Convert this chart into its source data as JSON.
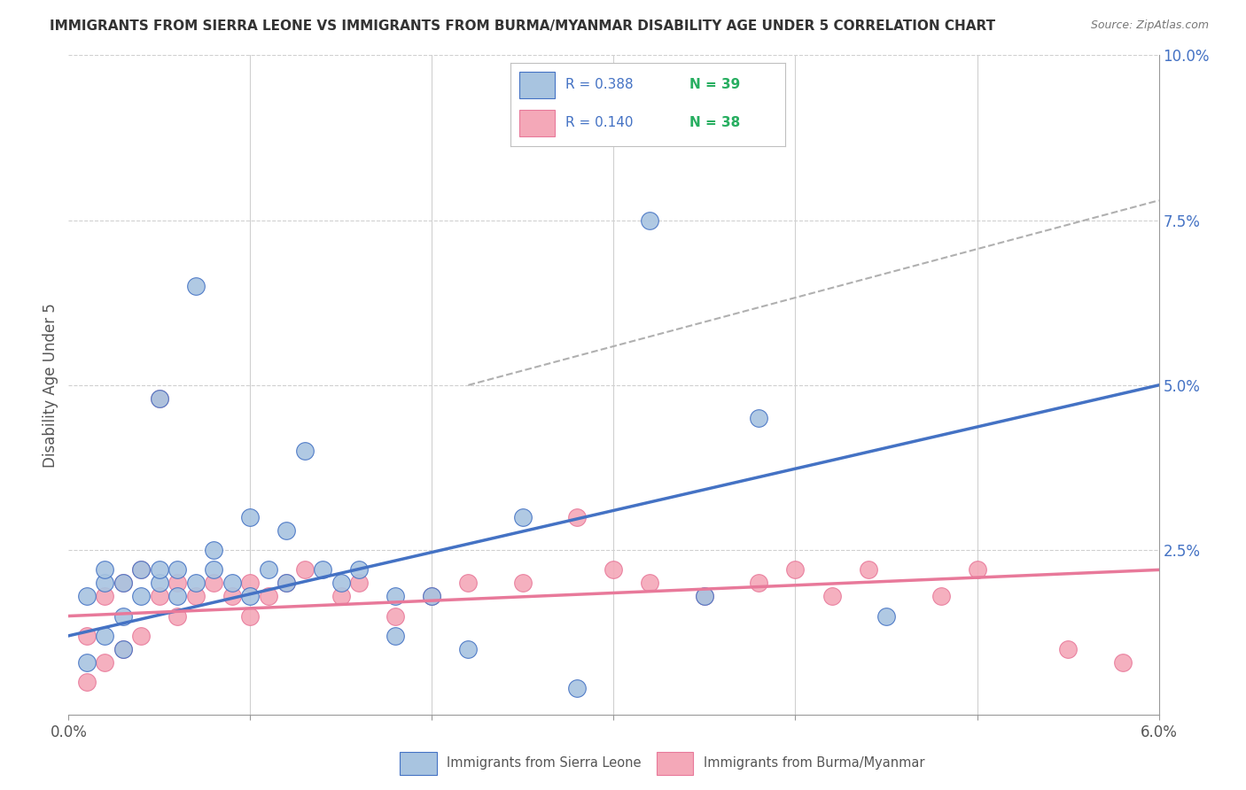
{
  "title": "IMMIGRANTS FROM SIERRA LEONE VS IMMIGRANTS FROM BURMA/MYANMAR DISABILITY AGE UNDER 5 CORRELATION CHART",
  "source": "Source: ZipAtlas.com",
  "ylabel": "Disability Age Under 5",
  "legend_blue_R": "R = 0.388",
  "legend_blue_N": "N = 39",
  "legend_pink_R": "R = 0.140",
  "legend_pink_N": "N = 38",
  "legend_label_blue": "Immigrants from Sierra Leone",
  "legend_label_pink": "Immigrants from Burma/Myanmar",
  "blue_color": "#a8c4e0",
  "pink_color": "#f4a8b8",
  "blue_line_color": "#4472c4",
  "pink_line_color": "#e8799a",
  "dashed_line_color": "#b0b0b0",
  "text_blue_color": "#4472c4",
  "text_dark_color": "#404040",
  "blue_scatter_x": [
    0.001,
    0.001,
    0.002,
    0.002,
    0.002,
    0.003,
    0.003,
    0.003,
    0.004,
    0.004,
    0.005,
    0.005,
    0.005,
    0.006,
    0.006,
    0.007,
    0.007,
    0.008,
    0.008,
    0.009,
    0.01,
    0.01,
    0.011,
    0.012,
    0.012,
    0.013,
    0.014,
    0.015,
    0.016,
    0.018,
    0.018,
    0.02,
    0.022,
    0.025,
    0.028,
    0.032,
    0.035,
    0.038,
    0.045
  ],
  "blue_scatter_y": [
    0.008,
    0.018,
    0.012,
    0.02,
    0.022,
    0.01,
    0.015,
    0.02,
    0.018,
    0.022,
    0.02,
    0.022,
    0.048,
    0.018,
    0.022,
    0.02,
    0.065,
    0.022,
    0.025,
    0.02,
    0.018,
    0.03,
    0.022,
    0.02,
    0.028,
    0.04,
    0.022,
    0.02,
    0.022,
    0.018,
    0.012,
    0.018,
    0.01,
    0.03,
    0.004,
    0.075,
    0.018,
    0.045,
    0.015
  ],
  "pink_scatter_x": [
    0.001,
    0.001,
    0.002,
    0.002,
    0.003,
    0.003,
    0.004,
    0.004,
    0.005,
    0.005,
    0.006,
    0.006,
    0.007,
    0.008,
    0.009,
    0.01,
    0.01,
    0.011,
    0.012,
    0.013,
    0.015,
    0.016,
    0.018,
    0.02,
    0.022,
    0.025,
    0.028,
    0.03,
    0.032,
    0.035,
    0.038,
    0.04,
    0.042,
    0.044,
    0.048,
    0.05,
    0.055,
    0.058
  ],
  "pink_scatter_y": [
    0.005,
    0.012,
    0.008,
    0.018,
    0.01,
    0.02,
    0.012,
    0.022,
    0.048,
    0.018,
    0.015,
    0.02,
    0.018,
    0.02,
    0.018,
    0.015,
    0.02,
    0.018,
    0.02,
    0.022,
    0.018,
    0.02,
    0.015,
    0.018,
    0.02,
    0.02,
    0.03,
    0.022,
    0.02,
    0.018,
    0.02,
    0.022,
    0.018,
    0.022,
    0.018,
    0.022,
    0.01,
    0.008
  ],
  "xlim": [
    0.0,
    0.06
  ],
  "ylim": [
    0.0,
    0.1
  ],
  "blue_trend_x": [
    0.0,
    0.06
  ],
  "blue_trend_y": [
    0.012,
    0.05
  ],
  "pink_trend_x": [
    0.0,
    0.06
  ],
  "pink_trend_y": [
    0.015,
    0.022
  ],
  "dashed_trend_x": [
    0.022,
    0.06
  ],
  "dashed_trend_y": [
    0.05,
    0.078
  ]
}
